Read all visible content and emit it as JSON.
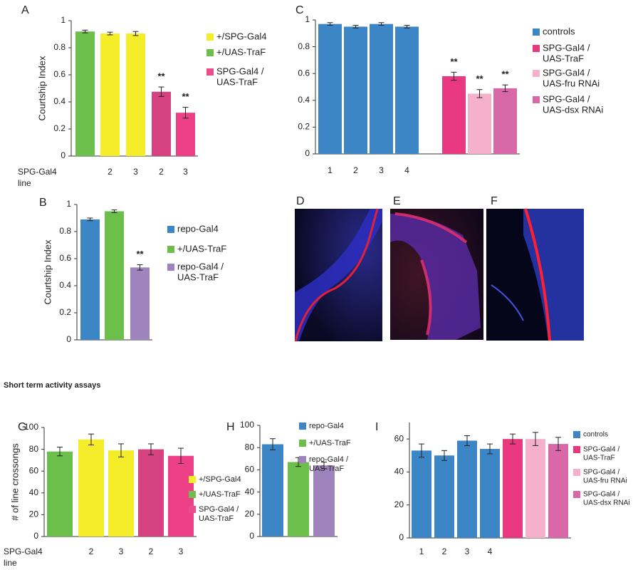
{
  "section_title": "Short term activity assays",
  "images": [
    {
      "label": "D"
    },
    {
      "label": "E"
    },
    {
      "label": "F"
    }
  ],
  "chart_data": [
    {
      "type": "bar",
      "panel": "A",
      "ylabel": "Courtship Index",
      "xlabel": [
        "SPG-Gal4",
        "line"
      ],
      "categories": [
        null,
        "2",
        "3",
        "2",
        "3"
      ],
      "values": [
        0.92,
        0.905,
        0.905,
        0.475,
        0.32
      ],
      "errors": [
        0.01,
        0.01,
        0.015,
        0.035,
        0.04
      ],
      "colors": [
        "#6cbf4a",
        "#f5ec2a",
        "#f5ec2a",
        "#d6427f",
        "#ec3f86"
      ],
      "significance": [
        null,
        null,
        null,
        "**",
        "**"
      ],
      "ylim": [
        0,
        1
      ],
      "yticks": [
        0,
        0.2,
        0.4,
        0.6,
        0.8,
        1
      ],
      "legend": [
        {
          "name": [
            "+/SPG-Gal4"
          ],
          "color": "#f5ec2a"
        },
        {
          "name": [
            "+/UAS-TraF"
          ],
          "color": "#6cbf4a"
        },
        {
          "name": [
            "SPG-Gal4 /",
            "UAS-TraF"
          ],
          "color": "#ec4c8c"
        }
      ]
    },
    {
      "type": "bar",
      "panel": "C",
      "categories": [
        "1",
        "2",
        "3",
        "4",
        null,
        null,
        null
      ],
      "values": [
        0.97,
        0.95,
        0.97,
        0.95,
        0.58,
        0.45,
        0.49
      ],
      "errors": [
        0.01,
        0.01,
        0.01,
        0.01,
        0.03,
        0.03,
        0.025
      ],
      "colors": [
        "#3d86c6",
        "#3d86c6",
        "#3d86c6",
        "#3d86c6",
        "#e8387f",
        "#f5b0cc",
        "#d868a8"
      ],
      "significance": [
        null,
        null,
        null,
        null,
        "**",
        "**",
        "**"
      ],
      "ylim": [
        0,
        1
      ],
      "yticks": [
        0,
        0.2,
        0.4,
        0.6,
        0.8,
        1
      ],
      "legend": [
        {
          "name": [
            "controls"
          ],
          "color": "#3d86c6"
        },
        {
          "name": [
            "SPG-Gal4 /",
            "UAS-TraF"
          ],
          "color": "#e8387f"
        },
        {
          "name": [
            "SPG-Gal4 /",
            "UAS-fru RNAi"
          ],
          "color": "#f5b0cc"
        },
        {
          "name": [
            "SPG-Gal4 /",
            "UAS-dsx RNAi"
          ],
          "color": "#d868a8"
        }
      ]
    },
    {
      "type": "bar",
      "panel": "B",
      "ylabel": "Courtship Index",
      "categories": [
        null,
        null,
        null
      ],
      "values": [
        0.89,
        0.95,
        0.535
      ],
      "errors": [
        0.01,
        0.01,
        0.02
      ],
      "colors": [
        "#3d86c6",
        "#6cbf4a",
        "#9f83bd"
      ],
      "significance": [
        null,
        null,
        "**"
      ],
      "ylim": [
        0,
        1
      ],
      "yticks": [
        0,
        0.2,
        0.4,
        0.6,
        0.8,
        1
      ],
      "legend": [
        {
          "name": [
            "repo-Gal4"
          ],
          "color": "#3d86c6"
        },
        {
          "name": [
            "+/UAS-TraF"
          ],
          "color": "#6cbf4a"
        },
        {
          "name": [
            "repo-Gal4 /",
            "UAS-TraF"
          ],
          "color": "#9f83bd"
        }
      ]
    },
    {
      "type": "bar",
      "panel": "G",
      "ylabel": "# of line crossongs",
      "xlabel": [
        "SPG-Gal4",
        "line"
      ],
      "categories": [
        null,
        "2",
        "3",
        "2",
        "3"
      ],
      "values": [
        78,
        89,
        79,
        80,
        74
      ],
      "errors": [
        4,
        5,
        6,
        5,
        7
      ],
      "colors": [
        "#6cbf4a",
        "#f5ec2a",
        "#f5ec2a",
        "#d6427f",
        "#ec3f86"
      ],
      "ylim": [
        0,
        100
      ],
      "yticks": [
        0,
        20,
        40,
        60,
        80,
        100
      ],
      "legend": [
        {
          "name": [
            "+/SPG-Gal4"
          ],
          "color": "#f5ec2a"
        },
        {
          "name": [
            "+/UAS-TraF"
          ],
          "color": "#6cbf4a"
        },
        {
          "name": [
            "SPG-Gal4 /",
            "UAS-TraF"
          ],
          "color": "#ec4c8c"
        }
      ]
    },
    {
      "type": "bar",
      "panel": "H",
      "categories": [
        null,
        null,
        null
      ],
      "values": [
        83,
        67,
        64
      ],
      "errors": [
        5,
        4,
        3
      ],
      "colors": [
        "#3d86c6",
        "#6cbf4a",
        "#9f83bd"
      ],
      "ylim": [
        0,
        100
      ],
      "yticks": [
        0,
        20,
        40,
        60,
        80,
        100
      ],
      "legend": [
        {
          "name": [
            "repo-Gal4"
          ],
          "color": "#3d86c6"
        },
        {
          "name": [
            "+/UAS-TraF"
          ],
          "color": "#6cbf4a"
        },
        {
          "name": [
            "repo-Gal4 /",
            "UAS-TraF"
          ],
          "color": "#9f83bd"
        }
      ]
    },
    {
      "type": "bar",
      "panel": "I",
      "categories": [
        "1",
        "2",
        "3",
        "4",
        null,
        null,
        null
      ],
      "values": [
        53,
        50,
        59,
        54,
        60,
        60,
        57
      ],
      "errors": [
        4,
        3,
        3,
        3,
        3,
        4,
        4
      ],
      "colors": [
        "#3d86c6",
        "#3d86c6",
        "#3d86c6",
        "#3d86c6",
        "#e8387f",
        "#f5b0cc",
        "#d868a8"
      ],
      "ylim": [
        0,
        70
      ],
      "yticks": [
        0,
        20,
        40,
        60
      ],
      "legend": [
        {
          "name": [
            "controls"
          ],
          "color": "#3d86c6"
        },
        {
          "name": [
            "SPG-Gal4 /",
            "UAS-TraF"
          ],
          "color": "#e8387f"
        },
        {
          "name": [
            "SPG-Gal4 /",
            "UAS-fru RNAi"
          ],
          "color": "#f5b0cc"
        },
        {
          "name": [
            "SPG-Gal4 /",
            "UAS-dsx RNAi"
          ],
          "color": "#d868a8"
        }
      ]
    }
  ]
}
